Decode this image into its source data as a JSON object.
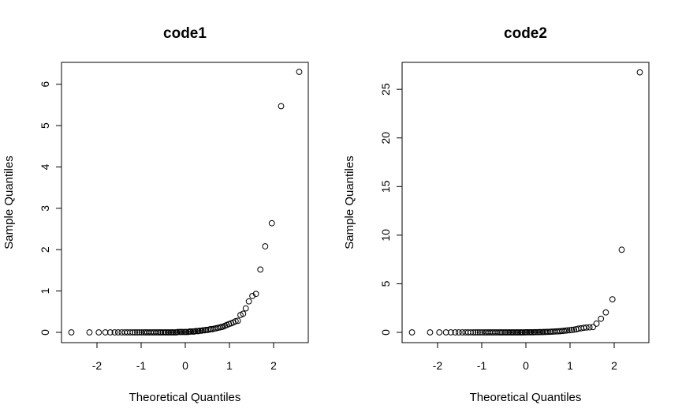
{
  "chart_data": [
    {
      "type": "scatter",
      "title": "code1",
      "xlabel": "Theoretical Quantiles",
      "ylabel": "Sample Quantiles",
      "xlim": [
        -2.6,
        2.6
      ],
      "ylim": [
        0,
        6.3
      ],
      "xticks": [
        -2,
        -1,
        0,
        1,
        2
      ],
      "yticks": [
        0,
        1,
        2,
        3,
        4,
        5,
        6
      ],
      "grid": false,
      "marker": "open-circle",
      "points": [
        [
          -2.58,
          0.0
        ],
        [
          -2.17,
          0.0
        ],
        [
          -1.96,
          0.0
        ],
        [
          -1.81,
          0.0
        ],
        [
          -1.7,
          0.0
        ],
        [
          -1.6,
          0.0
        ],
        [
          -1.52,
          0.0
        ],
        [
          -1.44,
          0.0
        ],
        [
          -1.37,
          0.0
        ],
        [
          -1.31,
          0.0
        ],
        [
          -1.25,
          0.0
        ],
        [
          -1.19,
          0.0
        ],
        [
          -1.14,
          0.0
        ],
        [
          -1.09,
          0.0
        ],
        [
          -1.04,
          0.0
        ],
        [
          -0.99,
          0.0
        ],
        [
          -0.94,
          0.0
        ],
        [
          -0.9,
          0.0
        ],
        [
          -0.86,
          0.0
        ],
        [
          -0.82,
          0.0
        ],
        [
          -0.78,
          0.0
        ],
        [
          -0.74,
          0.0
        ],
        [
          -0.7,
          0.0
        ],
        [
          -0.66,
          0.0
        ],
        [
          -0.62,
          0.0
        ],
        [
          -0.58,
          0.0
        ],
        [
          -0.55,
          0.0
        ],
        [
          -0.51,
          0.0
        ],
        [
          -0.47,
          0.0
        ],
        [
          -0.44,
          0.0
        ],
        [
          -0.4,
          0.0
        ],
        [
          -0.37,
          0.0
        ],
        [
          -0.33,
          0.0
        ],
        [
          -0.3,
          0.0
        ],
        [
          -0.27,
          0.0
        ],
        [
          -0.23,
          0.0
        ],
        [
          -0.2,
          0.0
        ],
        [
          -0.17,
          0.01
        ],
        [
          -0.13,
          0.01
        ],
        [
          -0.1,
          0.01
        ],
        [
          -0.07,
          0.01
        ],
        [
          -0.03,
          0.01
        ],
        [
          0.0,
          0.01
        ],
        [
          0.03,
          0.01
        ],
        [
          0.07,
          0.01
        ],
        [
          0.1,
          0.02
        ],
        [
          0.13,
          0.02
        ],
        [
          0.17,
          0.02
        ],
        [
          0.2,
          0.02
        ],
        [
          0.23,
          0.03
        ],
        [
          0.27,
          0.03
        ],
        [
          0.3,
          0.03
        ],
        [
          0.33,
          0.04
        ],
        [
          0.37,
          0.04
        ],
        [
          0.4,
          0.05
        ],
        [
          0.44,
          0.05
        ],
        [
          0.47,
          0.06
        ],
        [
          0.51,
          0.06
        ],
        [
          0.55,
          0.07
        ],
        [
          0.58,
          0.08
        ],
        [
          0.62,
          0.08
        ],
        [
          0.66,
          0.09
        ],
        [
          0.7,
          0.1
        ],
        [
          0.74,
          0.11
        ],
        [
          0.78,
          0.12
        ],
        [
          0.82,
          0.13
        ],
        [
          0.86,
          0.14
        ],
        [
          0.9,
          0.16
        ],
        [
          0.94,
          0.18
        ],
        [
          0.99,
          0.2
        ],
        [
          1.04,
          0.22
        ],
        [
          1.09,
          0.24
        ],
        [
          1.14,
          0.27
        ],
        [
          1.19,
          0.28
        ],
        [
          1.25,
          0.42
        ],
        [
          1.31,
          0.45
        ],
        [
          1.37,
          0.58
        ],
        [
          1.44,
          0.75
        ],
        [
          1.52,
          0.88
        ],
        [
          1.6,
          0.93
        ],
        [
          1.7,
          1.52
        ],
        [
          1.81,
          2.08
        ],
        [
          1.96,
          2.64
        ],
        [
          2.17,
          5.47
        ],
        [
          2.58,
          6.3
        ]
      ]
    },
    {
      "type": "scatter",
      "title": "code2",
      "xlabel": "Theoretical Quantiles",
      "ylabel": "Sample Quantiles",
      "xlim": [
        -2.6,
        2.6
      ],
      "ylim": [
        0,
        26.8
      ],
      "xticks": [
        -2,
        -1,
        0,
        1,
        2
      ],
      "yticks": [
        0,
        5,
        10,
        15,
        20,
        25
      ],
      "grid": false,
      "marker": "open-circle",
      "points": [
        [
          -2.58,
          0.0
        ],
        [
          -2.17,
          0.0
        ],
        [
          -1.96,
          0.0
        ],
        [
          -1.81,
          0.0
        ],
        [
          -1.7,
          0.0
        ],
        [
          -1.6,
          0.0
        ],
        [
          -1.52,
          0.0
        ],
        [
          -1.44,
          0.0
        ],
        [
          -1.37,
          0.0
        ],
        [
          -1.31,
          0.0
        ],
        [
          -1.25,
          0.0
        ],
        [
          -1.19,
          0.0
        ],
        [
          -1.14,
          0.0
        ],
        [
          -1.09,
          0.0
        ],
        [
          -1.04,
          0.0
        ],
        [
          -0.99,
          0.0
        ],
        [
          -0.94,
          0.0
        ],
        [
          -0.9,
          0.0
        ],
        [
          -0.86,
          0.0
        ],
        [
          -0.82,
          0.0
        ],
        [
          -0.78,
          0.0
        ],
        [
          -0.74,
          0.0
        ],
        [
          -0.7,
          0.0
        ],
        [
          -0.66,
          0.0
        ],
        [
          -0.62,
          0.0
        ],
        [
          -0.58,
          0.0
        ],
        [
          -0.55,
          0.0
        ],
        [
          -0.51,
          0.0
        ],
        [
          -0.47,
          0.0
        ],
        [
          -0.44,
          0.0
        ],
        [
          -0.4,
          0.0
        ],
        [
          -0.37,
          0.0
        ],
        [
          -0.33,
          0.0
        ],
        [
          -0.3,
          0.0
        ],
        [
          -0.27,
          0.0
        ],
        [
          -0.23,
          0.0
        ],
        [
          -0.2,
          0.0
        ],
        [
          -0.17,
          0.0
        ],
        [
          -0.13,
          0.0
        ],
        [
          -0.1,
          0.0
        ],
        [
          -0.07,
          0.0
        ],
        [
          -0.03,
          0.0
        ],
        [
          0.0,
          0.01
        ],
        [
          0.03,
          0.01
        ],
        [
          0.07,
          0.01
        ],
        [
          0.1,
          0.01
        ],
        [
          0.13,
          0.01
        ],
        [
          0.17,
          0.01
        ],
        [
          0.2,
          0.02
        ],
        [
          0.23,
          0.02
        ],
        [
          0.27,
          0.02
        ],
        [
          0.3,
          0.03
        ],
        [
          0.33,
          0.03
        ],
        [
          0.37,
          0.03
        ],
        [
          0.4,
          0.04
        ],
        [
          0.44,
          0.04
        ],
        [
          0.47,
          0.05
        ],
        [
          0.51,
          0.05
        ],
        [
          0.55,
          0.06
        ],
        [
          0.58,
          0.07
        ],
        [
          0.62,
          0.08
        ],
        [
          0.66,
          0.09
        ],
        [
          0.7,
          0.1
        ],
        [
          0.74,
          0.11
        ],
        [
          0.78,
          0.12
        ],
        [
          0.82,
          0.14
        ],
        [
          0.86,
          0.16
        ],
        [
          0.9,
          0.18
        ],
        [
          0.94,
          0.2
        ],
        [
          0.99,
          0.22
        ],
        [
          1.04,
          0.25
        ],
        [
          1.09,
          0.28
        ],
        [
          1.14,
          0.32
        ],
        [
          1.19,
          0.38
        ],
        [
          1.25,
          0.42
        ],
        [
          1.31,
          0.47
        ],
        [
          1.37,
          0.5
        ],
        [
          1.44,
          0.52
        ],
        [
          1.52,
          0.55
        ],
        [
          1.6,
          0.9
        ],
        [
          1.7,
          1.4
        ],
        [
          1.81,
          2.05
        ],
        [
          1.96,
          3.4
        ],
        [
          2.17,
          8.5
        ],
        [
          2.58,
          26.75
        ]
      ]
    }
  ]
}
